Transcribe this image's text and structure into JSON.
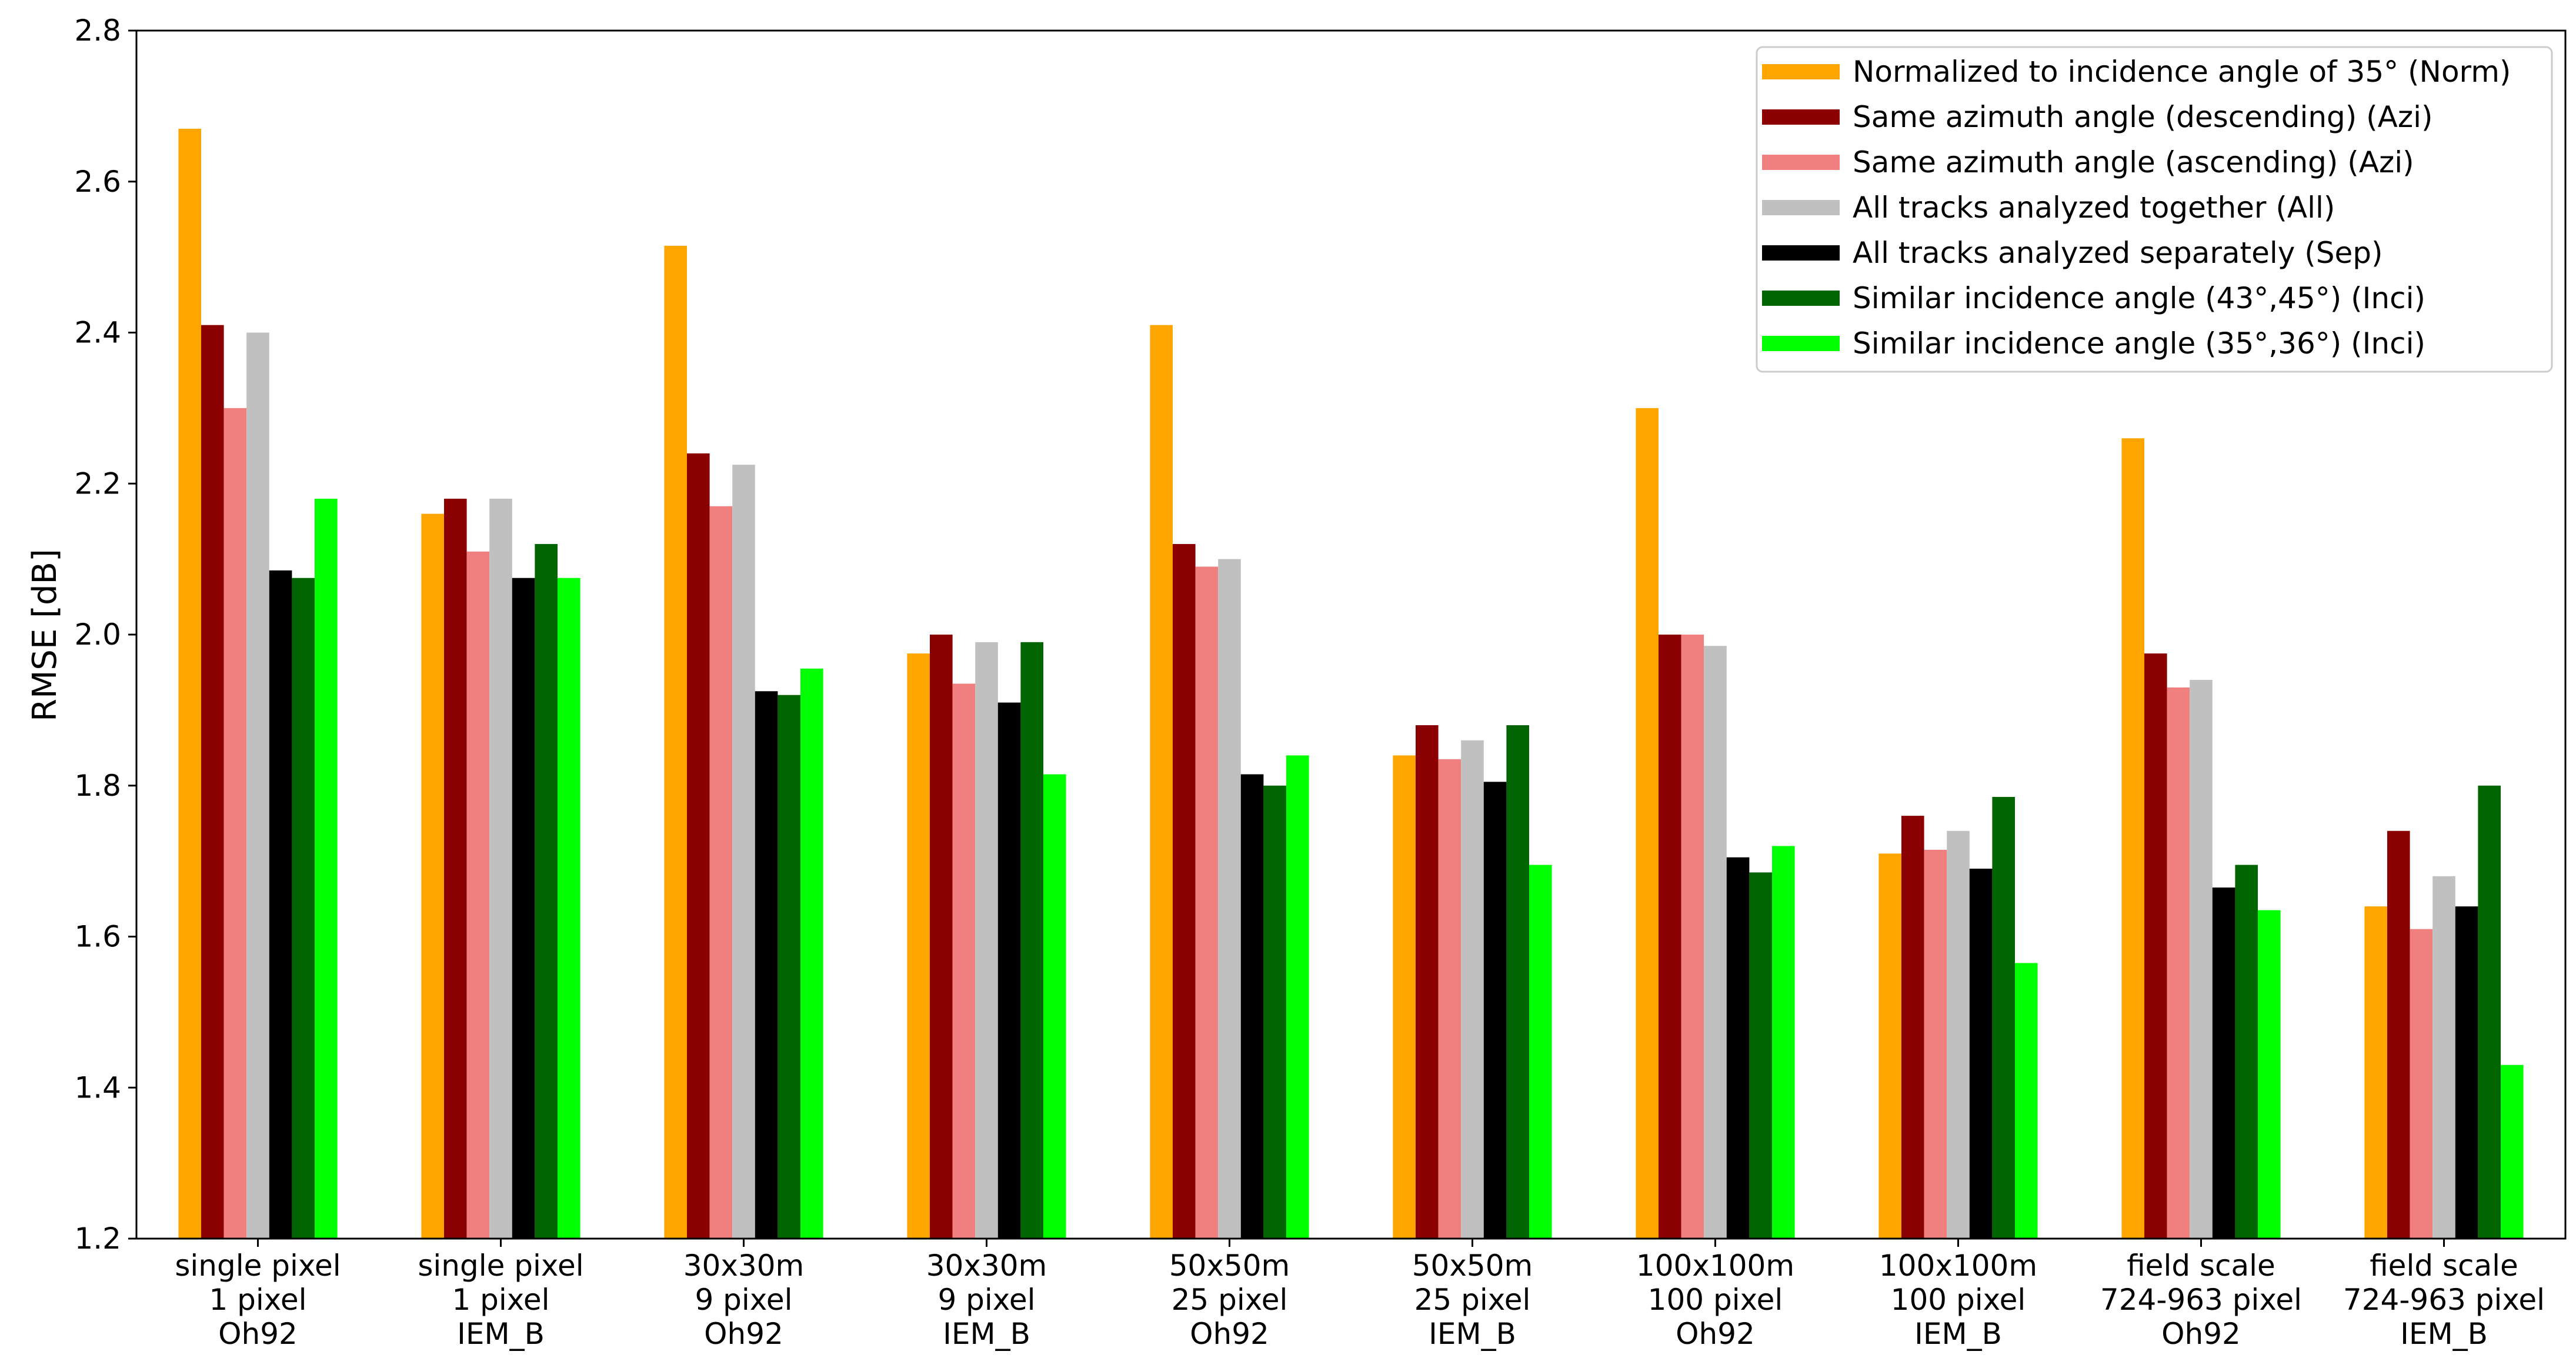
{
  "chart_data": {
    "type": "bar",
    "title": "",
    "xlabel": "",
    "ylabel": "RMSE [dB]",
    "ylim": [
      1.2,
      2.8
    ],
    "yticks": [
      "1.2",
      "1.4",
      "1.6",
      "1.8",
      "2.0",
      "2.2",
      "2.4",
      "2.6",
      "2.8"
    ],
    "grid": false,
    "legend_position": "top-right",
    "categories": [
      [
        "single pixel",
        "1 pixel",
        "Oh92"
      ],
      [
        "single pixel",
        "1 pixel",
        "IEM_B"
      ],
      [
        "30x30m",
        "9 pixel",
        "Oh92"
      ],
      [
        "30x30m",
        "9 pixel",
        "IEM_B"
      ],
      [
        "50x50m",
        "25 pixel",
        "Oh92"
      ],
      [
        "50x50m",
        "25 pixel",
        "IEM_B"
      ],
      [
        "100x100m",
        "100 pixel",
        "Oh92"
      ],
      [
        "100x100m",
        "100 pixel",
        "IEM_B"
      ],
      [
        "field scale",
        "724-963 pixel",
        "Oh92"
      ],
      [
        "field scale",
        "724-963 pixel",
        "IEM_B"
      ]
    ],
    "series": [
      {
        "name": "Normalized to incidence angle of 35° (Norm)",
        "color": "#FFA500",
        "values": [
          2.67,
          2.16,
          2.515,
          1.975,
          2.41,
          1.84,
          2.3,
          1.71,
          2.26,
          1.64
        ]
      },
      {
        "name": "Same azimuth angle (descending) (Azi)",
        "color": "#8B0000",
        "values": [
          2.41,
          2.18,
          2.24,
          2.0,
          2.12,
          1.88,
          2.0,
          1.76,
          1.975,
          1.74
        ]
      },
      {
        "name": "Same azimuth angle (ascending) (Azi)",
        "color": "#F08080",
        "values": [
          2.3,
          2.11,
          2.17,
          1.935,
          2.09,
          1.835,
          2.0,
          1.715,
          1.93,
          1.61
        ]
      },
      {
        "name": "All tracks analyzed together (All)",
        "color": "#C0C0C0",
        "values": [
          2.4,
          2.18,
          2.225,
          1.99,
          2.1,
          1.86,
          1.985,
          1.74,
          1.94,
          1.68
        ]
      },
      {
        "name": "All tracks analyzed separately (Sep)",
        "color": "#000000",
        "values": [
          2.085,
          2.075,
          1.925,
          1.91,
          1.815,
          1.805,
          1.705,
          1.69,
          1.665,
          1.64
        ]
      },
      {
        "name": "Similar incidence angle (43°,45°) (Inci)",
        "color": "#006400",
        "values": [
          2.075,
          2.12,
          1.92,
          1.99,
          1.8,
          1.88,
          1.685,
          1.785,
          1.695,
          1.8
        ]
      },
      {
        "name": "Similar incidence angle (35°,36°) (Inci)",
        "color": "#00FF00",
        "values": [
          2.18,
          2.075,
          1.955,
          1.815,
          1.84,
          1.695,
          1.72,
          1.565,
          1.635,
          1.43
        ]
      }
    ]
  }
}
